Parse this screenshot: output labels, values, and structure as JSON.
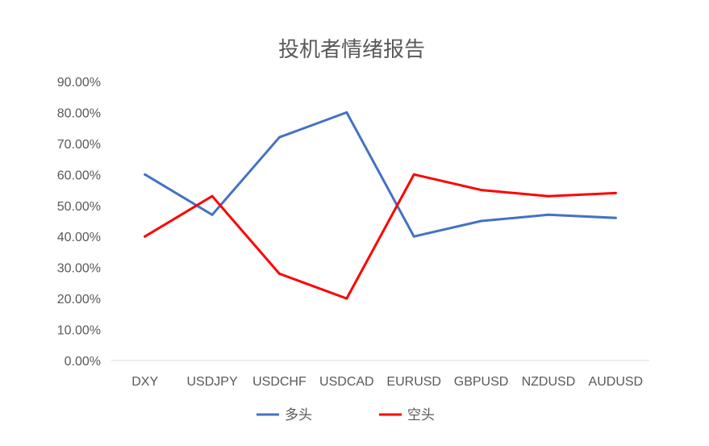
{
  "chart_data": {
    "type": "line",
    "title": "投机者情绪报告",
    "xlabel": "",
    "ylabel": "",
    "categories": [
      "DXY",
      "USDJPY",
      "USDCHF",
      "USDCAD",
      "EURUSD",
      "GBPUSD",
      "NZDUSD",
      "AUDUSD"
    ],
    "y_ticks": [
      "0.00%",
      "10.00%",
      "20.00%",
      "30.00%",
      "40.00%",
      "50.00%",
      "60.00%",
      "70.00%",
      "80.00%",
      "90.00%"
    ],
    "ylim": [
      0,
      0.9
    ],
    "y_format": "percent",
    "grid": false,
    "legend_position": "bottom",
    "series": [
      {
        "name": "多头",
        "color": "#4472c4",
        "values": [
          0.6,
          0.47,
          0.72,
          0.8,
          0.4,
          0.45,
          0.47,
          0.46
        ]
      },
      {
        "name": "空头",
        "color": "#ff0000",
        "values": [
          0.4,
          0.53,
          0.28,
          0.2,
          0.6,
          0.55,
          0.53,
          0.54
        ]
      }
    ]
  }
}
